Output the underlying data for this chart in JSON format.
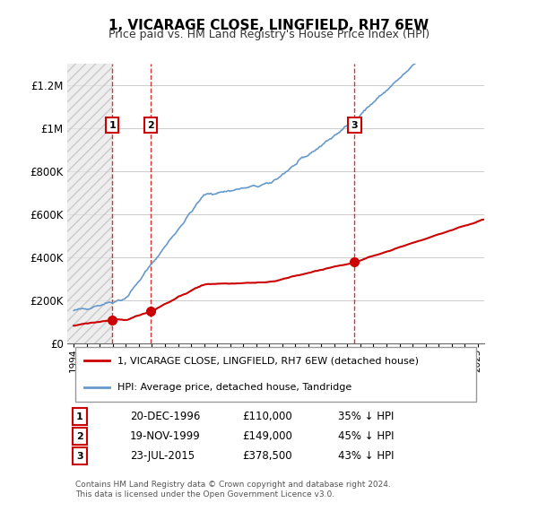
{
  "title": "1, VICARAGE CLOSE, LINGFIELD, RH7 6EW",
  "subtitle": "Price paid vs. HM Land Registry's House Price Index (HPI)",
  "ylabel_ticks": [
    "£0",
    "£200K",
    "£400K",
    "£600K",
    "£800K",
    "£1M",
    "£1.2M"
  ],
  "ylim": [
    0,
    1300000
  ],
  "yticks": [
    0,
    200000,
    400000,
    600000,
    800000,
    1000000,
    1200000
  ],
  "hpi_color": "#6699cc",
  "price_color": "#cc0000",
  "vline_color": "#cc0000",
  "annotation_box_color": "#cc0000",
  "background_hatch_color": "#dddddd",
  "transactions": [
    {
      "date_num": 1996.96,
      "price": 110000,
      "label": "1",
      "date_str": "20-DEC-1996",
      "pct": "35% ↓ HPI"
    },
    {
      "date_num": 1999.88,
      "price": 149000,
      "label": "2",
      "date_str": "19-NOV-1999",
      "pct": "45% ↓ HPI"
    },
    {
      "date_num": 2015.55,
      "price": 378500,
      "label": "3",
      "date_str": "23-JUL-2015",
      "pct": "43% ↓ HPI"
    }
  ],
  "legend_line1": "1, VICARAGE CLOSE, LINGFIELD, RH7 6EW (detached house)",
  "legend_line2": "HPI: Average price, detached house, Tandridge",
  "footnote": "Contains HM Land Registry data © Crown copyright and database right 2024.\nThis data is licensed under the Open Government Licence v3.0.",
  "xmin": 1993.5,
  "xmax": 2025.5
}
